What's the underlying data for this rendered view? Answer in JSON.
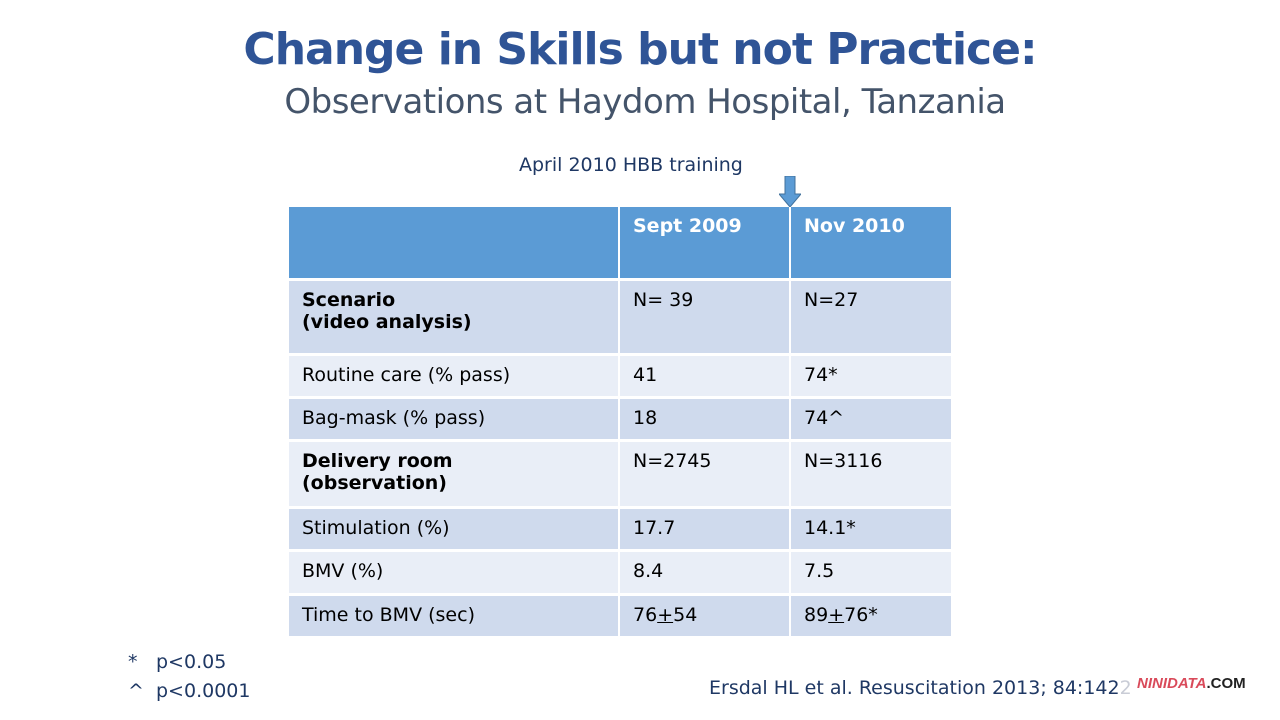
{
  "title": "Change in Skills but not Practice:",
  "subtitle": "Observations at Haydom Hospital, Tanzania",
  "annotation": "April 2010 HBB training",
  "table": {
    "headers": [
      "",
      "Sept 2009",
      "Nov 2010"
    ],
    "rows": [
      {
        "label": "Scenario",
        "label2": "(video analysis)",
        "bold": true,
        "v1": "N= 39",
        "v2": "N=27"
      },
      {
        "label": "Routine care (% pass)",
        "v1": "41",
        "v2": "74*"
      },
      {
        "label": "Bag-mask (% pass)",
        "v1": "18",
        "v2": "74^"
      },
      {
        "label": "Delivery room",
        "label2": "(observation)",
        "bold": true,
        "v1": "N=2745",
        "v2": "N=3116"
      },
      {
        "label": "Stimulation (%)",
        "v1": "17.7",
        "v2": "14.1*"
      },
      {
        "label": "BMV (%)",
        "v1": "8.4",
        "v2": "7.5"
      },
      {
        "label": "Time to BMV (sec)",
        "v1a": "76",
        "v1pm": "+",
        "v1b": "54",
        "v2a": "89",
        "v2pm": "+",
        "v2b": "76*"
      }
    ]
  },
  "footnotes": [
    {
      "sym": "*",
      "text": "p<0.05"
    },
    {
      "sym": "^",
      "text": "p<0.0001"
    }
  ],
  "citation": "Ersdal HL et al. Resuscitation 2013; 84:142",
  "citation_faded": "2",
  "watermark": {
    "brand": "NINIDATA",
    ".com": ".COM"
  }
}
